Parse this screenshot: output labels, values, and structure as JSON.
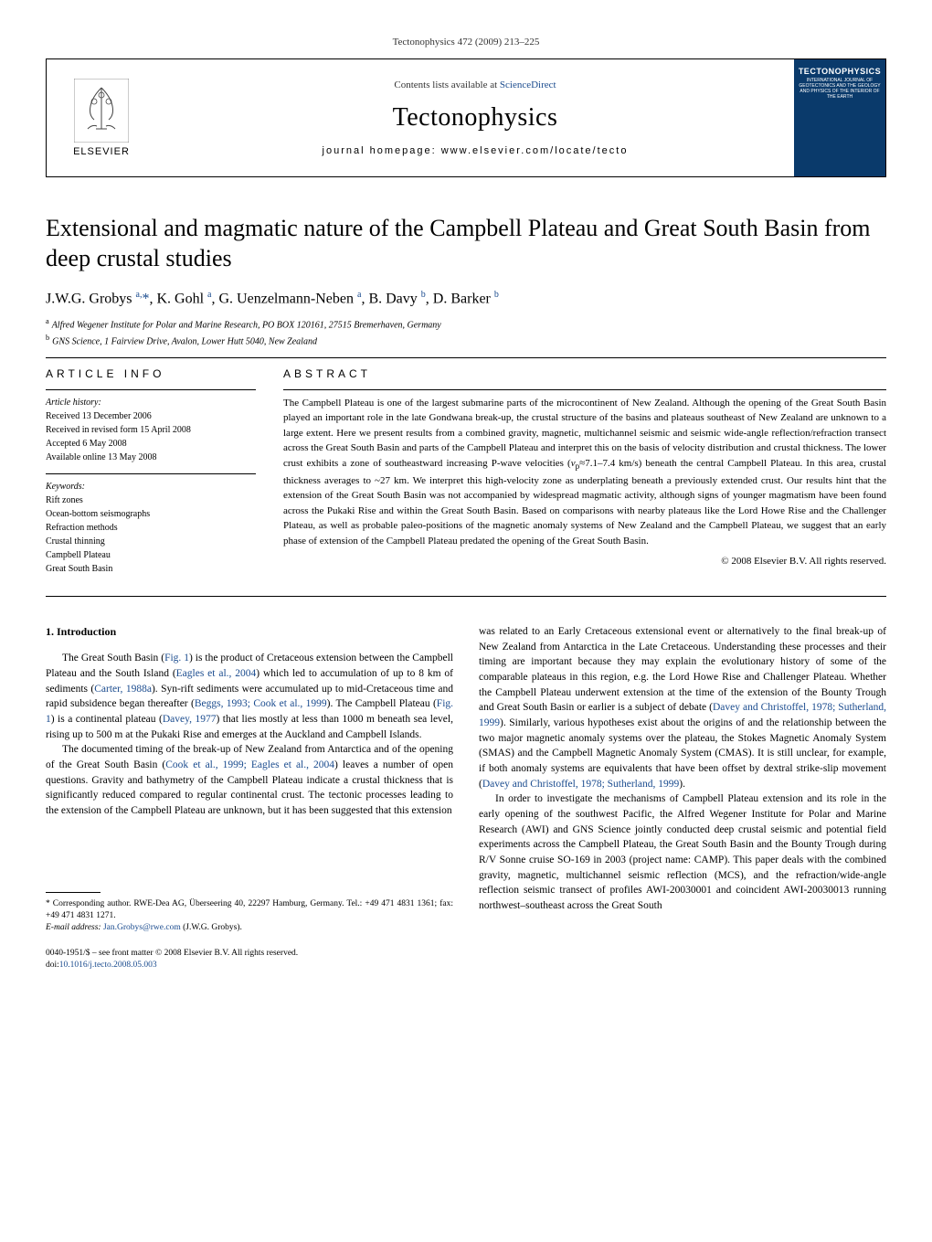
{
  "meta": {
    "citation": "Tectonophysics 472 (2009) 213–225",
    "contents_prefix": "Contents lists available at ",
    "contents_link": "ScienceDirect",
    "journal": "Tectonophysics",
    "homepage": "journal homepage: www.elsevier.com/locate/tecto",
    "elsevier": "ELSEVIER",
    "cover_title": "TECTONOPHYSICS",
    "cover_sub": "INTERNATIONAL JOURNAL OF GEOTECTONICS AND THE GEOLOGY AND PHYSICS OF THE INTERIOR OF THE EARTH"
  },
  "title": "Extensional and magmatic nature of the Campbell Plateau and Great South Basin from deep crustal studies",
  "authors_html": "J.W.G. Grobys <sup>a,</sup><span class=\"ast\">*</span>, K. Gohl <sup>a</sup>, G. Uenzelmann-Neben <sup>a</sup>, B. Davy <sup>b</sup>, D. Barker <sup>b</sup>",
  "affiliations": {
    "a": "Alfred Wegener Institute for Polar and Marine Research, PO BOX 120161, 27515 Bremerhaven, Germany",
    "b": "GNS Science, 1 Fairview Drive, Avalon, Lower Hutt 5040, New Zealand"
  },
  "info": {
    "heading": "ARTICLE INFO",
    "history_label": "Article history:",
    "received": "Received 13 December 2006",
    "revised": "Received in revised form 15 April 2008",
    "accepted": "Accepted 6 May 2008",
    "online": "Available online 13 May 2008",
    "keywords_label": "Keywords:",
    "keywords": [
      "Rift zones",
      "Ocean-bottom seismographs",
      "Refraction methods",
      "Crustal thinning",
      "Campbell Plateau",
      "Great South Basin"
    ]
  },
  "abstract": {
    "heading": "ABSTRACT",
    "text": "The Campbell Plateau is one of the largest submarine parts of the microcontinent of New Zealand. Although the opening of the Great South Basin played an important role in the late Gondwana break-up, the crustal structure of the basins and plateaus southeast of New Zealand are unknown to a large extent. Here we present results from a combined gravity, magnetic, multichannel seismic and seismic wide-angle reflection/refraction transect across the Great South Basin and parts of the Campbell Plateau and interpret this on the basis of velocity distribution and crustal thickness. The lower crust exhibits a zone of southeastward increasing P-wave velocities (vₚ≈7.1–7.4 km/s) beneath the central Campbell Plateau. In this area, crustal thickness averages to ~27 km. We interpret this high-velocity zone as underplating beneath a previously extended crust. Our results hint that the extension of the Great South Basin was not accompanied by widespread magmatic activity, although signs of younger magmatism have been found across the Pukaki Rise and within the Great South Basin. Based on comparisons with nearby plateaus like the Lord Howe Rise and the Challenger Plateau, as well as probable paleo-positions of the magnetic anomaly systems of New Zealand and the Campbell Plateau, we suggest that an early phase of extension of the Campbell Plateau predated the opening of the Great South Basin.",
    "copyright": "© 2008 Elsevier B.V. All rights reserved."
  },
  "body": {
    "heading": "1. Introduction",
    "col1_p1": "The Great South Basin (Fig. 1) is the product of Cretaceous extension between the Campbell Plateau and the South Island (Eagles et al., 2004) which led to accumulation of up to 8 km of sediments (Carter, 1988a). Syn-rift sediments were accumulated up to mid-Cretaceous time and rapid subsidence began thereafter (Beggs, 1993; Cook et al., 1999). The Campbell Plateau (Fig. 1) is a continental plateau (Davey, 1977) that lies mostly at less than 1000 m beneath sea level, rising up to 500 m at the Pukaki Rise and emerges at the Auckland and Campbell Islands.",
    "col1_p2": "The documented timing of the break-up of New Zealand from Antarctica and of the opening of the Great South Basin (Cook et al., 1999; Eagles et al., 2004) leaves a number of open questions. Gravity and bathymetry of the Campbell Plateau indicate a crustal thickness that is significantly reduced compared to regular continental crust. The tectonic processes leading to the extension of the Campbell Plateau are unknown, but it has been suggested that this extension",
    "col2_p1": "was related to an Early Cretaceous extensional event or alternatively to the final break-up of New Zealand from Antarctica in the Late Cretaceous. Understanding these processes and their timing are important because they may explain the evolutionary history of some of the comparable plateaus in this region, e.g. the Lord Howe Rise and Challenger Plateau. Whether the Campbell Plateau underwent extension at the time of the extension of the Bounty Trough and Great South Basin or earlier is a subject of debate (Davey and Christoffel, 1978; Sutherland, 1999). Similarly, various hypotheses exist about the origins of and the relationship between the two major magnetic anomaly systems over the plateau, the Stokes Magnetic Anomaly System (SMAS) and the Campbell Magnetic Anomaly System (CMAS). It is still unclear, for example, if both anomaly systems are equivalents that have been offset by dextral strike-slip movement (Davey and Christoffel, 1978; Sutherland, 1999).",
    "col2_p2": "In order to investigate the mechanisms of Campbell Plateau extension and its role in the early opening of the southwest Pacific, the Alfred Wegener Institute for Polar and Marine Research (AWI) and GNS Science jointly conducted deep crustal seismic and potential field experiments across the Campbell Plateau, the Great South Basin and the Bounty Trough during R/V Sonne cruise SO-169 in 2003 (project name: CAMP). This paper deals with the combined gravity, magnetic, multichannel seismic reflection (MCS), and the refraction/wide-angle reflection seismic transect of profiles AWI-20030001 and coincident AWI-20030013 running northwest–southeast across the Great South"
  },
  "footnotes": {
    "corr": "* Corresponding author. RWE-Dea AG, Überseering 40, 22297 Hamburg, Germany. Tel.: +49 471 4831 1361; fax: +49 471 4831 1271.",
    "email_label": "E-mail address: ",
    "email": "Jan.Grobys@rwe.com",
    "email_suffix": " (J.W.G. Grobys)."
  },
  "bottom": {
    "line1": "0040-1951/$ – see front matter © 2008 Elsevier B.V. All rights reserved.",
    "doi_prefix": "doi:",
    "doi": "10.1016/j.tecto.2008.05.003"
  },
  "colors": {
    "link": "#1a4b8e",
    "cover_bg": "#0a3a6b"
  }
}
